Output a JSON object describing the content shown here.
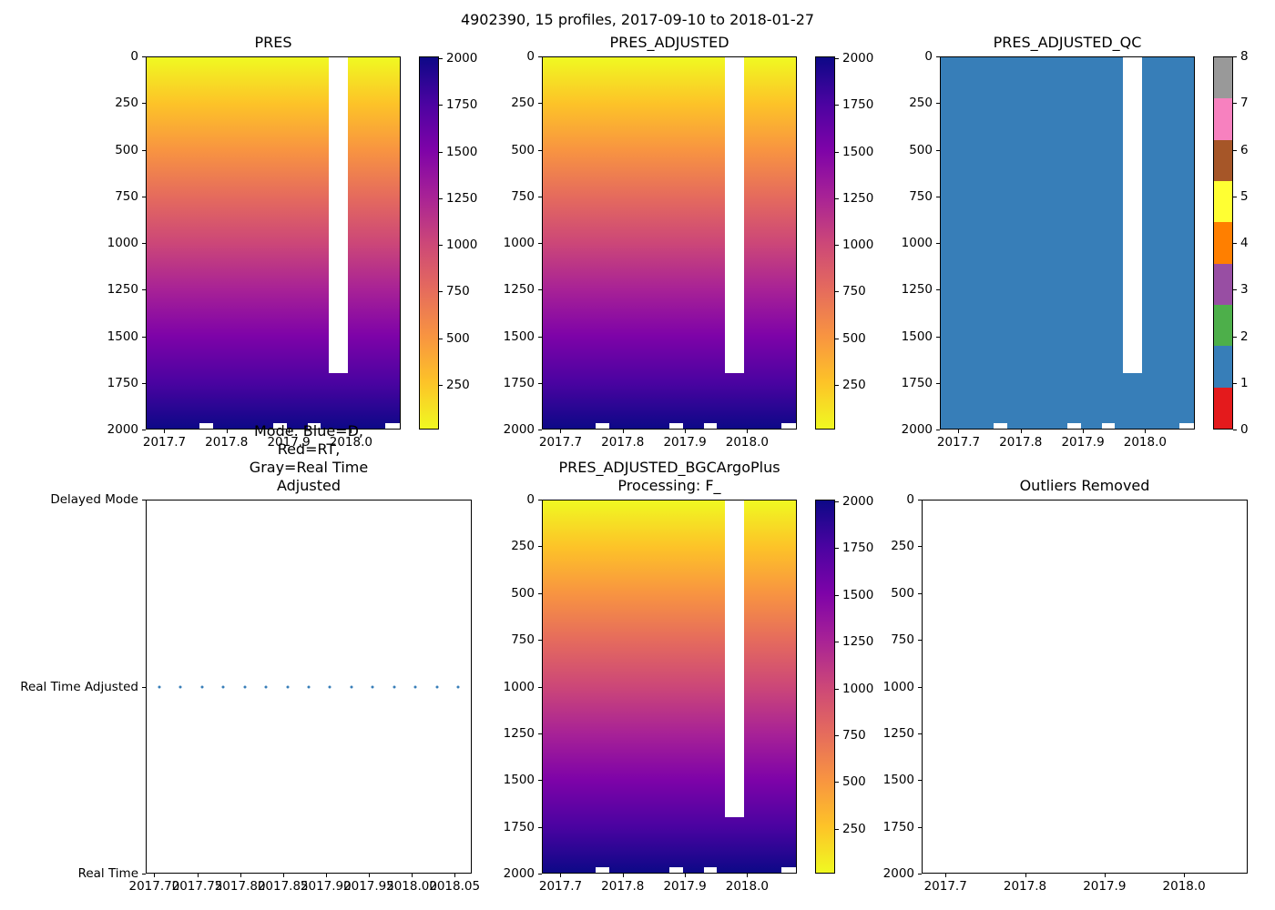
{
  "figure": {
    "suptitle": "4902390, 15 profiles, 2017-09-10 to 2018-01-27",
    "background": "#ffffff"
  },
  "palette": {
    "plasma_r_top_to_bottom": [
      "#f0f921",
      "#fdc328",
      "#f89441",
      "#e56b5d",
      "#cc4778",
      "#a82296",
      "#7e03a8",
      "#4b03a1",
      "#0d0887"
    ],
    "qc_set1_bottom_to_top": [
      "#e41a1c",
      "#377eb8",
      "#4daf4a",
      "#984ea3",
      "#ff7f00",
      "#ffff33",
      "#a65628",
      "#f781bf",
      "#999999"
    ],
    "qc_fill": "#377eb8",
    "mode_dot": "#377eb8"
  },
  "chart_data": [
    {
      "id": "pres",
      "type": "heatmap",
      "title": "PRES",
      "colormap": "plasma_r",
      "value_rule": "cell value equals pressure (dbar); increases with depth from ~10 at surface to ~2010 at bottom",
      "xlim": [
        2017.67,
        2018.08
      ],
      "ylim": [
        0,
        2000
      ],
      "xticks": [
        2017.7,
        2017.8,
        2017.9,
        2018.0
      ],
      "xtick_labels": [
        "2017.7",
        "2017.8",
        "2017.9",
        "2018.0"
      ],
      "yticks": [
        0,
        250,
        500,
        750,
        1000,
        1250,
        1500,
        1750,
        2000
      ],
      "colorbar": {
        "vmin": 10,
        "vmax": 2010,
        "ticks": [
          250,
          500,
          750,
          1000,
          1250,
          1500,
          1750,
          2000
        ]
      },
      "missing_band": {
        "x0": 2017.965,
        "x1": 2017.996,
        "y0": 0,
        "y1": 1700
      },
      "missing_bottom_notches": [
        [
          2017.755,
          2017.777
        ],
        [
          2017.875,
          2017.897
        ],
        [
          2017.931,
          2017.951
        ],
        [
          2018.057,
          2018.08
        ]
      ]
    },
    {
      "id": "presadj",
      "type": "heatmap",
      "title": "PRES_ADJUSTED",
      "colormap": "plasma_r",
      "value_rule": "cell value equals adjusted pressure (dbar); increases with depth from ~10 at surface to ~2010 at bottom",
      "xlim": [
        2017.67,
        2018.08
      ],
      "ylim": [
        0,
        2000
      ],
      "xticks": [
        2017.7,
        2017.8,
        2017.9,
        2018.0
      ],
      "xtick_labels": [
        "2017.7",
        "2017.8",
        "2017.9",
        "2018.0"
      ],
      "yticks": [
        0,
        250,
        500,
        750,
        1000,
        1250,
        1500,
        1750,
        2000
      ],
      "colorbar": {
        "vmin": 10,
        "vmax": 2010,
        "ticks": [
          250,
          500,
          750,
          1000,
          1250,
          1500,
          1750,
          2000
        ]
      },
      "missing_band": {
        "x0": 2017.965,
        "x1": 2017.996,
        "y0": 0,
        "y1": 1700
      },
      "missing_bottom_notches": [
        [
          2017.755,
          2017.777
        ],
        [
          2017.875,
          2017.897
        ],
        [
          2017.931,
          2017.951
        ],
        [
          2018.057,
          2018.08
        ]
      ]
    },
    {
      "id": "qc",
      "type": "heatmap_constant",
      "title": "PRES_ADJUSTED_QC",
      "fill": "qc1",
      "constant_value": 1,
      "value_rule": "all QC flags equal 1 (steel blue)",
      "xlim": [
        2017.67,
        2018.08
      ],
      "ylim": [
        0,
        2000
      ],
      "xticks": [
        2017.7,
        2017.8,
        2017.9,
        2018.0
      ],
      "xtick_labels": [
        "2017.7",
        "2017.8",
        "2017.9",
        "2018.0"
      ],
      "yticks": [
        0,
        250,
        500,
        750,
        1000,
        1250,
        1500,
        1750,
        2000
      ],
      "colorbar": {
        "discrete": true,
        "ticks": [
          0,
          1,
          2,
          3,
          4,
          5,
          6,
          7,
          8
        ]
      },
      "missing_band": {
        "x0": 2017.965,
        "x1": 2017.996,
        "y0": 0,
        "y1": 1700
      },
      "missing_bottom_notches": [
        [
          2017.755,
          2017.777
        ],
        [
          2017.875,
          2017.897
        ],
        [
          2017.931,
          2017.951
        ],
        [
          2018.057,
          2018.08
        ]
      ]
    },
    {
      "id": "mode",
      "type": "scatter",
      "title": "Mode. Blue=D, Red=RT,\nGray=Real Time Adjusted",
      "xlim": [
        2017.69,
        2018.07
      ],
      "xticks": [
        2017.7,
        2017.75,
        2017.8,
        2017.85,
        2017.9,
        2017.95,
        2018.0,
        2018.05
      ],
      "xtick_labels": [
        "2017.70",
        "2017.75",
        "2017.80",
        "2017.85",
        "2017.90",
        "2017.95",
        "2018.00",
        "2018.05"
      ],
      "ycategories": [
        "Delayed Mode",
        "Real Time Adjusted",
        "Real Time"
      ],
      "points": {
        "y_category": "Real Time Adjusted",
        "x": [
          2017.705,
          2017.73,
          2017.755,
          2017.78,
          2017.805,
          2017.83,
          2017.855,
          2017.88,
          2017.905,
          2017.93,
          2017.955,
          2017.98,
          2018.005,
          2018.03,
          2018.055
        ]
      }
    },
    {
      "id": "bgc",
      "type": "heatmap",
      "title": "PRES_ADJUSTED_BGCArgoPlus\nProcessing: F_",
      "colormap": "plasma_r",
      "value_rule": "cell value equals adjusted pressure (dbar); increases with depth from ~10 at surface to ~2010 at bottom",
      "xlim": [
        2017.67,
        2018.08
      ],
      "ylim": [
        0,
        2000
      ],
      "xticks": [
        2017.7,
        2017.8,
        2017.9,
        2018.0
      ],
      "xtick_labels": [
        "2017.7",
        "2017.8",
        "2017.9",
        "2018.0"
      ],
      "yticks": [
        0,
        250,
        500,
        750,
        1000,
        1250,
        1500,
        1750,
        2000
      ],
      "colorbar": {
        "vmin": 10,
        "vmax": 2010,
        "ticks": [
          250,
          500,
          750,
          1000,
          1250,
          1500,
          1750,
          2000
        ]
      },
      "missing_band": {
        "x0": 2017.965,
        "x1": 2017.996,
        "y0": 0,
        "y1": 1700
      },
      "missing_bottom_notches": [
        [
          2017.755,
          2017.777
        ],
        [
          2017.875,
          2017.897
        ],
        [
          2017.931,
          2017.951
        ],
        [
          2018.057,
          2018.08
        ]
      ]
    },
    {
      "id": "outliers",
      "type": "empty",
      "title": "Outliers Removed",
      "xlim": [
        2017.67,
        2018.08
      ],
      "ylim": [
        0,
        2000
      ],
      "xticks": [
        2017.7,
        2017.8,
        2017.9,
        2018.0
      ],
      "xtick_labels": [
        "2017.7",
        "2017.8",
        "2017.9",
        "2018.0"
      ],
      "yticks": [
        0,
        250,
        500,
        750,
        1000,
        1250,
        1500,
        1750,
        2000
      ]
    }
  ]
}
